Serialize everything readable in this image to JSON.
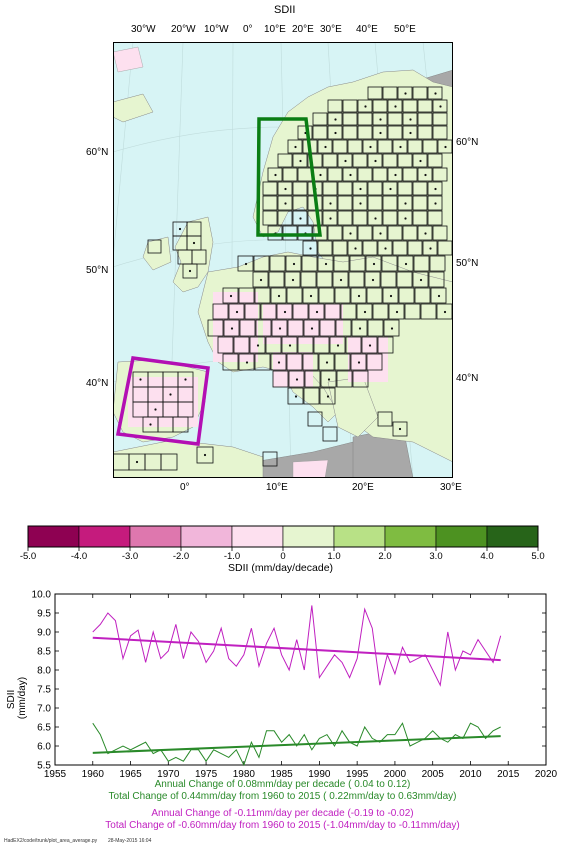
{
  "map": {
    "title": "SDII",
    "top_lon_labels": [
      "30°W",
      "20°W",
      "10°W",
      "0°",
      "10°E",
      "20°E",
      "30°E",
      "40°E",
      "50°E"
    ],
    "bottom_lon_labels": [
      "0°",
      "10°E",
      "20°E",
      "30°E"
    ],
    "left_lat_labels": [
      "60°N",
      "50°N",
      "40°N"
    ],
    "right_lat_labels": [
      "60°N",
      "50°N",
      "40°N"
    ],
    "colors": {
      "ocean": "#d7f4f5",
      "land_none": "#f3f3f3",
      "land_pos": "#e6f5d0",
      "land_neg": "#fde0ef",
      "grey": "#a8a8a8",
      "box_green": "#0a7d14",
      "box_magenta": "#b30fb3"
    }
  },
  "colorbar": {
    "ticks": [
      "-5.0",
      "-4.0",
      "-3.0",
      "-2.0",
      "-1.0",
      "0",
      "1.0",
      "2.0",
      "3.0",
      "4.0",
      "5.0"
    ],
    "label": "SDII (mm/day/decade)",
    "colors": [
      "#8e0152",
      "#c51b7d",
      "#de77ae",
      "#f1b6da",
      "#fde0ef",
      "#e6f5d0",
      "#b8e186",
      "#7fbc41",
      "#4d9221",
      "#276419"
    ]
  },
  "chart_data": {
    "type": "line",
    "ylabel": "SDII\n(mm/day)",
    "xlim": [
      1955,
      2020
    ],
    "ylim": [
      5.5,
      10.0
    ],
    "x_ticks": [
      "1955",
      "1960",
      "1965",
      "1970",
      "1975",
      "1980",
      "1985",
      "1990",
      "1995",
      "2000",
      "2005",
      "2010",
      "2015",
      "2020"
    ],
    "y_ticks": [
      "5.5",
      "6.0",
      "6.5",
      "7.0",
      "7.5",
      "8.0",
      "8.5",
      "9.0",
      "9.5",
      "10.0"
    ],
    "x": [
      1960,
      1961,
      1962,
      1963,
      1964,
      1965,
      1966,
      1967,
      1968,
      1969,
      1970,
      1971,
      1972,
      1973,
      1974,
      1975,
      1976,
      1977,
      1978,
      1979,
      1980,
      1981,
      1982,
      1983,
      1984,
      1985,
      1986,
      1987,
      1988,
      1989,
      1990,
      1991,
      1992,
      1993,
      1994,
      1995,
      1996,
      1997,
      1998,
      1999,
      2000,
      2001,
      2002,
      2003,
      2004,
      2005,
      2006,
      2007,
      2008,
      2009,
      2010,
      2011,
      2012,
      2013,
      2014
    ],
    "series": [
      {
        "color": "#c020c0",
        "values": [
          9.0,
          9.2,
          9.5,
          9.3,
          8.3,
          8.9,
          9.05,
          8.2,
          9.0,
          8.3,
          8.5,
          9.2,
          8.3,
          9.0,
          8.75,
          8.2,
          8.5,
          9.1,
          8.3,
          8.1,
          8.4,
          9.1,
          8.1,
          8.7,
          9.1,
          8.4,
          8.0,
          8.8,
          8.0,
          9.7,
          7.8,
          8.1,
          8.4,
          8.2,
          7.8,
          8.3,
          9.6,
          9.1,
          7.6,
          8.4,
          7.9,
          8.6,
          8.2,
          8.3,
          8.4,
          8.0,
          7.6,
          9.0,
          8.0,
          8.5,
          8.4,
          8.8,
          8.5,
          8.2,
          8.9
        ],
        "trend": [
          8.85,
          8.26
        ]
      },
      {
        "color": "#2a8a2a",
        "values": [
          6.6,
          6.3,
          5.8,
          5.9,
          6.0,
          5.9,
          6.0,
          6.1,
          5.8,
          5.9,
          5.6,
          5.7,
          5.6,
          5.9,
          5.9,
          5.6,
          5.9,
          5.8,
          5.7,
          5.9,
          5.5,
          6.1,
          5.7,
          6.4,
          6.4,
          6.1,
          6.3,
          6.0,
          6.3,
          5.9,
          6.2,
          6.3,
          6.0,
          6.4,
          6.1,
          6.0,
          6.5,
          6.2,
          6.1,
          6.3,
          6.3,
          6.6,
          6.0,
          6.1,
          6.2,
          6.4,
          6.2,
          6.1,
          6.3,
          6.2,
          6.6,
          6.5,
          6.2,
          6.4,
          6.5
        ],
        "trend": [
          5.82,
          6.26
        ]
      }
    ],
    "annotations": [
      {
        "text": "Annual Change of  0.08mm/day per decade ( 0.04 to  0.12)",
        "color": "#2a8a2a"
      },
      {
        "text": "Total Change of  0.44mm/day from 1960 to 2015 ( 0.22mm/day to  0.63mm/day)",
        "color": "#2a8a2a"
      },
      {
        "text": "Annual Change of -0.11mm/day per decade (-0.19 to -0.02)",
        "color": "#c020c0"
      },
      {
        "text": "Total Change of -0.60mm/day from 1960 to 2015 (-1.04mm/day to -0.11mm/day)",
        "color": "#c020c0"
      }
    ]
  },
  "footer": {
    "left": "HadEX2/code/trunk/plot_area_average.py",
    "right": "28-May-2015 16:04"
  }
}
